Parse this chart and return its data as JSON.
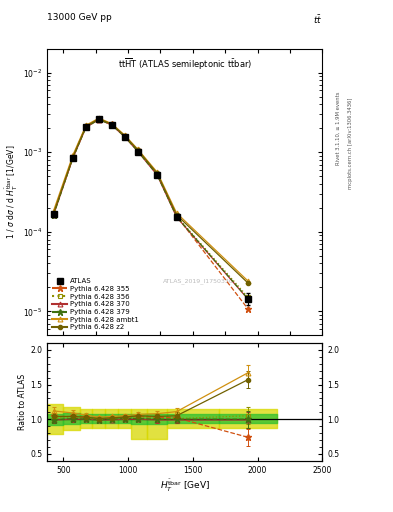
{
  "x": [
    425,
    575,
    675,
    775,
    875,
    975,
    1075,
    1225,
    1375,
    1925
  ],
  "atlas_y": [
    0.000165,
    0.00085,
    0.00205,
    0.0026,
    0.0022,
    0.00155,
    0.00102,
    0.00052,
    0.000155,
    1.45e-05
  ],
  "atlas_yerr_lo": [
    1.2e-05,
    3.5e-05,
    7e-05,
    8e-05,
    7e-05,
    5e-05,
    3.5e-05,
    1.8e-06,
    1e-05,
    2.5e-06
  ],
  "atlas_yerr_hi": [
    1.2e-05,
    3.5e-05,
    7e-05,
    8e-05,
    7e-05,
    5e-05,
    3.5e-05,
    1.8e-06,
    1e-05,
    2.5e-06
  ],
  "p355_y": [
    0.000172,
    0.000885,
    0.00212,
    0.00262,
    0.00224,
    0.00159,
    0.00106,
    0.000535,
    0.000158,
    1.08e-05
  ],
  "p356_y": [
    0.000168,
    0.000865,
    0.00208,
    0.0026,
    0.00222,
    0.00157,
    0.00104,
    0.000528,
    0.000157,
    1.52e-05
  ],
  "p370_y": [
    0.000164,
    0.000852,
    0.00205,
    0.00257,
    0.00219,
    0.00155,
    0.00102,
    0.000515,
    0.000153,
    1.43e-05
  ],
  "p379_y": [
    0.000164,
    0.000855,
    0.00206,
    0.00258,
    0.0022,
    0.00156,
    0.00103,
    0.00052,
    0.000155,
    1.45e-05
  ],
  "pambt1_y": [
    0.000185,
    0.00093,
    0.00218,
    0.00268,
    0.00228,
    0.00163,
    0.00109,
    0.00056,
    0.000172,
    2.42e-05
  ],
  "pz2_y": [
    0.000172,
    0.000882,
    0.00212,
    0.00263,
    0.00224,
    0.0016,
    0.00107,
    0.000542,
    0.000163,
    2.28e-05
  ],
  "ratio_p355": [
    1.04,
    1.04,
    1.03,
    1.01,
    1.02,
    1.03,
    1.04,
    1.03,
    1.02,
    0.74
  ],
  "ratio_p356": [
    1.02,
    1.02,
    1.01,
    1.0,
    1.01,
    1.01,
    1.02,
    1.01,
    1.01,
    1.05
  ],
  "ratio_p370": [
    0.99,
    1.0,
    1.0,
    0.99,
    0.99,
    1.0,
    1.0,
    0.99,
    0.99,
    0.99
  ],
  "ratio_p379": [
    0.99,
    1.01,
    1.0,
    0.99,
    1.0,
    1.01,
    1.01,
    1.0,
    1.0,
    1.0
  ],
  "ratio_pambt1": [
    1.12,
    1.09,
    1.06,
    1.03,
    1.04,
    1.05,
    1.07,
    1.08,
    1.11,
    1.67
  ],
  "ratio_pz2": [
    1.04,
    1.04,
    1.03,
    1.01,
    1.02,
    1.03,
    1.05,
    1.04,
    1.05,
    1.57
  ],
  "ratio_yerr_355": [
    0.05,
    0.04,
    0.03,
    0.02,
    0.02,
    0.03,
    0.03,
    0.04,
    0.05,
    0.12
  ],
  "ratio_yerr_356": [
    0.05,
    0.04,
    0.03,
    0.02,
    0.02,
    0.03,
    0.03,
    0.04,
    0.05,
    0.12
  ],
  "ratio_yerr_370": [
    0.05,
    0.04,
    0.03,
    0.02,
    0.02,
    0.03,
    0.03,
    0.04,
    0.05,
    0.12
  ],
  "ratio_yerr_379": [
    0.05,
    0.04,
    0.03,
    0.02,
    0.02,
    0.03,
    0.03,
    0.04,
    0.05,
    0.12
  ],
  "ratio_yerr_ambt1": [
    0.05,
    0.04,
    0.03,
    0.02,
    0.02,
    0.03,
    0.03,
    0.04,
    0.05,
    0.12
  ],
  "ratio_yerr_z2": [
    0.05,
    0.04,
    0.03,
    0.02,
    0.02,
    0.03,
    0.03,
    0.04,
    0.05,
    0.12
  ],
  "band_xedges": [
    375,
    500,
    625,
    725,
    825,
    925,
    1025,
    1150,
    1300,
    1700,
    2150
  ],
  "band_yellow_lo": [
    0.78,
    0.84,
    0.88,
    0.88,
    0.88,
    0.88,
    0.72,
    0.72,
    0.88,
    0.88
  ],
  "band_yellow_hi": [
    1.22,
    1.18,
    1.15,
    1.15,
    1.15,
    1.15,
    1.15,
    1.15,
    1.15,
    1.15
  ],
  "band_green_lo": [
    0.92,
    0.93,
    0.95,
    0.95,
    0.95,
    0.95,
    0.93,
    0.93,
    0.95,
    0.95
  ],
  "band_green_hi": [
    1.08,
    1.09,
    1.08,
    1.08,
    1.08,
    1.08,
    1.08,
    1.08,
    1.08,
    1.08
  ],
  "color_355": "#d05010",
  "color_356": "#909000",
  "color_370": "#b03030",
  "color_379": "#407010",
  "color_ambt1": "#d09010",
  "color_z2": "#706000",
  "color_atlas": "#000000",
  "color_green_band": "#30c030",
  "color_yellow_band": "#d8d800",
  "xlim": [
    375,
    2500
  ],
  "ylim_main": [
    5e-06,
    0.02
  ],
  "ylim_ratio": [
    0.4,
    2.1
  ],
  "yticks_ratio": [
    0.5,
    1.0,
    1.5,
    2.0
  ],
  "xticks": [
    500,
    1000,
    1500,
    2000,
    2500
  ]
}
